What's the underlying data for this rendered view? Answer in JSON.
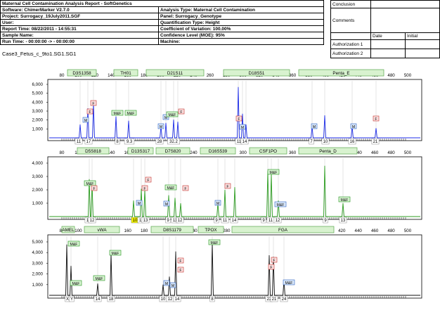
{
  "header": {
    "title": "Maternal Cell Contamination Analysis Report  - SoftGenetics",
    "rows": [
      {
        "l": "Software:  ChimerMarker V2.7.0",
        "r": "Analysis Type:  Maternal Cell Contamination"
      },
      {
        "l": "Project:  Surrogacy_19July2011.SGF",
        "r": "Panel:  Surrogacy_Genotype"
      },
      {
        "l": "User:",
        "r": "Quantification Type:  Height"
      },
      {
        "l": "Report Time:  08/22/2011 - 14:55:31",
        "r": "Coefficient of Variation:  100.00%"
      },
      {
        "l": "Sample Name:",
        "r": "Confidence Level (MOE):  95%"
      },
      {
        "l": "Run Time:  - 00:00:00 -> - 00:00:00",
        "r": "Machine:"
      }
    ]
  },
  "auth": {
    "conclusion": "Conclusion",
    "comments": "Comments",
    "date": "Date",
    "initial": "Initial",
    "auth1": "Authorization 1",
    "auth2": "Authorization 2"
  },
  "sample_name": "Case3_Fetus_c_9to1.SG1.SG1",
  "x_ticks": [
    "80",
    "100",
    "120",
    "140",
    "160",
    "180",
    "200",
    "220",
    "240",
    "260",
    "280",
    "300",
    "320",
    "340",
    "360",
    "380",
    "400",
    "420",
    "440",
    "460",
    "480",
    "500"
  ],
  "panels": [
    {
      "color": "#1f2ee8",
      "y_ticks": [
        "6,000",
        "5,000",
        "4,000",
        "3,000",
        "2,000",
        "1,000"
      ],
      "loci": [
        {
          "name": "D3S1358",
          "x0": 96,
          "x1": 137
        },
        {
          "name": "TH01",
          "x0": 162,
          "x1": 196
        },
        {
          "name": "D21S11",
          "x0": 208,
          "x1": 290
        },
        {
          "name": "D18S51",
          "x0": 318,
          "x1": 412
        },
        {
          "name": "Penta_E",
          "x0": 425,
          "x1": 546
        }
      ],
      "markers": [
        {
          "t": "M",
          "x": 122,
          "y": 172,
          "c": "b"
        },
        {
          "t": "F",
          "x": 128,
          "y": 160,
          "c": "r"
        },
        {
          "t": "F",
          "x": 133,
          "y": 148,
          "c": "r"
        },
        {
          "t": "M&F",
          "x": 167,
          "y": 162,
          "c": "g"
        },
        {
          "t": "M&F",
          "x": 186,
          "y": 162,
          "c": "g"
        },
        {
          "t": "M",
          "x": 236,
          "y": 168,
          "c": "b"
        },
        {
          "t": "M",
          "x": 229,
          "y": 181,
          "c": "b"
        },
        {
          "t": "M&F",
          "x": 245,
          "y": 164,
          "c": "g"
        },
        {
          "t": "F",
          "x": 258,
          "y": 160,
          "c": "r"
        },
        {
          "t": "F",
          "x": 340,
          "y": 170,
          "c": "r"
        },
        {
          "t": "M",
          "x": 345,
          "y": 182,
          "c": "b"
        },
        {
          "t": "M",
          "x": 447,
          "y": 181,
          "c": "b"
        },
        {
          "t": "M",
          "x": 503,
          "y": 181,
          "c": "b"
        },
        {
          "t": "F",
          "x": 535,
          "y": 170,
          "c": "r"
        }
      ],
      "alleles": [
        {
          "t": "11",
          "x": 112
        },
        {
          "t": "17",
          "x": 126
        },
        {
          "t": "8",
          "x": 167
        },
        {
          "t": "9.3",
          "x": 184
        },
        {
          "t": "28",
          "x": 227
        },
        {
          "t": "32.2",
          "x": 247
        },
        {
          "t": "11",
          "x": 340
        },
        {
          "t": "14",
          "x": 348
        },
        {
          "t": "7",
          "x": 443
        },
        {
          "t": "10",
          "x": 463
        },
        {
          "t": "16",
          "x": 501
        },
        {
          "t": "21",
          "x": 534
        }
      ]
    },
    {
      "color": "#2e9e22",
      "y_ticks": [
        "4,000",
        "3,000",
        "2,000",
        "1,000"
      ],
      "loci": [
        {
          "name": "D5S818",
          "x0": 110,
          "x1": 155
        },
        {
          "name": "D13S317",
          "x0": 182,
          "x1": 218
        },
        {
          "name": "D7S820",
          "x0": 222,
          "x1": 270
        },
        {
          "name": "D16S539",
          "x0": 285,
          "x1": 335
        },
        {
          "name": "CSF1PO",
          "x0": 355,
          "x1": 408
        },
        {
          "name": "Penta_D",
          "x0": 425,
          "x1": 508
        }
      ],
      "markers": [
        {
          "t": "M&F",
          "x": 128,
          "y": 262,
          "c": "g"
        },
        {
          "t": "F",
          "x": 134,
          "y": 269,
          "c": "r"
        },
        {
          "t": "F",
          "x": 211,
          "y": 257,
          "c": "r"
        },
        {
          "t": "F",
          "x": 206,
          "y": 269,
          "c": "r"
        },
        {
          "t": "M",
          "x": 198,
          "y": 290,
          "c": "b"
        },
        {
          "t": "M&F",
          "x": 243,
          "y": 268,
          "c": "g"
        },
        {
          "t": "F",
          "x": 264,
          "y": 269,
          "c": "r"
        },
        {
          "t": "M",
          "x": 237,
          "y": 291,
          "c": "b"
        },
        {
          "t": "F",
          "x": 324,
          "y": 266,
          "c": "r"
        },
        {
          "t": "M",
          "x": 310,
          "y": 290,
          "c": "b"
        },
        {
          "t": "M&F",
          "x": 389,
          "y": 246,
          "c": "g"
        },
        {
          "t": "M&F",
          "x": 399,
          "y": 292,
          "c": "b"
        },
        {
          "t": "M&F",
          "x": 490,
          "y": 285,
          "c": "g"
        }
      ],
      "alleles": [
        {
          "t": "11",
          "x": 126
        },
        {
          "t": "12",
          "x": 131
        },
        {
          "t": "10",
          "x": 192,
          "hl": true
        },
        {
          "t": "11",
          "x": 201
        },
        {
          "t": "13",
          "x": 207
        },
        {
          "t": "9",
          "x": 239
        },
        {
          "t": "11",
          "x": 249
        },
        {
          "t": "12",
          "x": 256
        },
        {
          "t": "9",
          "x": 308
        },
        {
          "t": "11",
          "x": 320
        },
        {
          "t": "14",
          "x": 333
        },
        {
          "t": "9",
          "x": 375
        },
        {
          "t": "11",
          "x": 385
        },
        {
          "t": "12",
          "x": 395
        },
        {
          "t": "9",
          "x": 463
        },
        {
          "t": "13",
          "x": 488
        }
      ]
    },
    {
      "color": "#111111",
      "y_ticks": [
        "5,000",
        "4,000",
        "3,000",
        "2,000",
        "1,000"
      ],
      "loci": [
        {
          "name": "AMEL",
          "x0": 88,
          "x1": 106
        },
        {
          "name": "vWA",
          "x0": 120,
          "x1": 170
        },
        {
          "name": "D8S1179",
          "x0": 215,
          "x1": 275
        },
        {
          "name": "TPOX",
          "x0": 282,
          "x1": 318
        },
        {
          "name": "FGA",
          "x0": 330,
          "x1": 475
        }
      ],
      "markers": [
        {
          "t": "M&F",
          "x": 105,
          "y": 348,
          "c": "g"
        },
        {
          "t": "M&F",
          "x": 108,
          "y": 404,
          "c": "g"
        },
        {
          "t": "M&F",
          "x": 141,
          "y": 397,
          "c": "g"
        },
        {
          "t": "M&F",
          "x": 164,
          "y": 361,
          "c": "g"
        },
        {
          "t": "F",
          "x": 257,
          "y": 372,
          "c": "r"
        },
        {
          "t": "F",
          "x": 257,
          "y": 385,
          "c": "r"
        },
        {
          "t": "M",
          "x": 246,
          "y": 407,
          "c": "b"
        },
        {
          "t": "M",
          "x": 237,
          "y": 404,
          "c": "b"
        },
        {
          "t": "M&F",
          "x": 305,
          "y": 346,
          "c": "g"
        },
        {
          "t": "F",
          "x": 390,
          "y": 371,
          "c": "r"
        },
        {
          "t": "F",
          "x": 386,
          "y": 381,
          "c": "r"
        },
        {
          "t": "M&F",
          "x": 411,
          "y": 403,
          "c": "b"
        }
      ],
      "alleles": [
        {
          "t": "X",
          "x": 96
        },
        {
          "t": "Y",
          "x": 102
        },
        {
          "t": "14",
          "x": 139
        },
        {
          "t": "18",
          "x": 158
        },
        {
          "t": "10",
          "x": 232
        },
        {
          "t": "12",
          "x": 242
        },
        {
          "t": "14",
          "x": 252
        },
        {
          "t": "8",
          "x": 302
        },
        {
          "t": "22",
          "x": 383
        },
        {
          "t": "21",
          "x": 390
        },
        {
          "t": "24",
          "x": 404
        }
      ]
    }
  ]
}
